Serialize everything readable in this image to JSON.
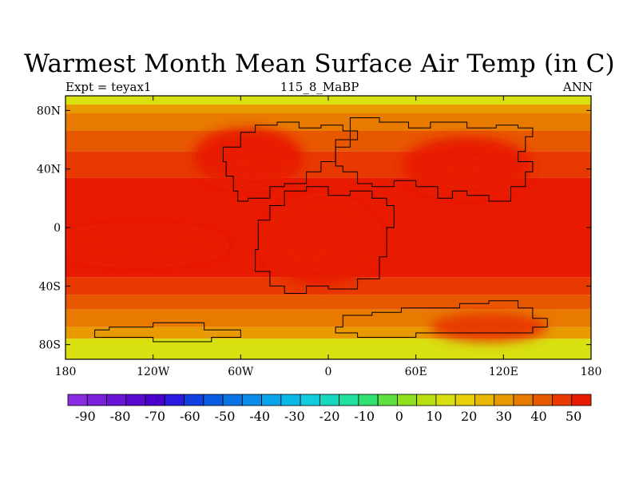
{
  "title": "Warmest Month Mean Surface Air Temp (in C)",
  "subtitle_left": "Expt = teyax1",
  "subtitle_center": "115_8_MaBP",
  "subtitle_right": "ANN",
  "map": {
    "type": "filled-contour-map",
    "variable": "Warmest Month Mean Surface Air Temp",
    "units": "C",
    "lon_range": [
      -180,
      180
    ],
    "lat_range": [
      -90,
      90
    ],
    "x_tick_labels": [
      {
        "lon": -180,
        "label": "180"
      },
      {
        "lon": -120,
        "label": "120W"
      },
      {
        "lon": -60,
        "label": "60W"
      },
      {
        "lon": 0,
        "label": "0"
      },
      {
        "lon": 60,
        "label": "60E"
      },
      {
        "lon": 120,
        "label": "120E"
      },
      {
        "lon": 180,
        "label": "180"
      }
    ],
    "y_tick_labels": [
      {
        "lat": 80,
        "label": "80N"
      },
      {
        "lat": 40,
        "label": "40N"
      },
      {
        "lat": 0,
        "label": "0"
      },
      {
        "lat": -40,
        "label": "40S"
      },
      {
        "lat": -80,
        "label": "80S"
      }
    ],
    "temperature_bands": [
      {
        "lat_from": 90,
        "lat_to": 84,
        "temp": 0
      },
      {
        "lat_from": 84,
        "lat_to": 78,
        "temp": 15
      },
      {
        "lat_from": 78,
        "lat_to": 66,
        "temp": 20
      },
      {
        "lat_from": 66,
        "lat_to": 52,
        "temp": 25
      },
      {
        "lat_from": 52,
        "lat_to": 34,
        "temp": 30
      },
      {
        "lat_from": 34,
        "lat_to": -34,
        "temp": 35
      },
      {
        "lat_from": -34,
        "lat_to": -46,
        "temp": 30
      },
      {
        "lat_from": -46,
        "lat_to": -56,
        "temp": 25
      },
      {
        "lat_from": -56,
        "lat_to": -68,
        "temp": 20
      },
      {
        "lat_from": -68,
        "lat_to": -76,
        "temp": 15
      },
      {
        "lat_from": -76,
        "lat_to": -90,
        "temp": 0
      }
    ],
    "hot_spots": [
      {
        "name": "laurasia-west",
        "lon": -55,
        "lat": 48,
        "rlon": 38,
        "rlat": 20,
        "temp": 40
      },
      {
        "name": "laurasia-west-core",
        "lon": -45,
        "lat": 45,
        "rlon": 20,
        "rlat": 10,
        "temp": 45
      },
      {
        "name": "asia",
        "lon": 95,
        "lat": 42,
        "rlon": 45,
        "rlat": 20,
        "temp": 40
      },
      {
        "name": "asia-core",
        "lon": 93,
        "lat": 38,
        "rlon": 18,
        "rlat": 8,
        "temp": 45
      },
      {
        "name": "west-gondwana",
        "lon": -5,
        "lat": -10,
        "rlon": 40,
        "rlat": 30,
        "temp": 40
      },
      {
        "name": "west-gondwana-core",
        "lon": -15,
        "lat": -18,
        "rlon": 15,
        "rlat": 10,
        "temp": 45
      },
      {
        "name": "equatorial-ocean",
        "lon": -130,
        "lat": -12,
        "rlon": 60,
        "rlat": 12,
        "temp": 40
      },
      {
        "name": "east-gondwana",
        "lon": 110,
        "lat": -68,
        "rlon": 40,
        "rlat": 10,
        "temp": 30
      }
    ],
    "coastlines": [
      [
        [
          -60,
          65
        ],
        [
          -50,
          70
        ],
        [
          -35,
          72
        ],
        [
          -20,
          68
        ],
        [
          -5,
          70
        ],
        [
          10,
          66
        ],
        [
          20,
          60
        ],
        [
          5,
          55
        ],
        [
          5,
          45
        ],
        [
          -5,
          38
        ],
        [
          -15,
          30
        ],
        [
          -30,
          28
        ],
        [
          -40,
          20
        ],
        [
          -55,
          18
        ],
        [
          -62,
          25
        ],
        [
          -65,
          35
        ],
        [
          -70,
          45
        ],
        [
          -72,
          55
        ],
        [
          -60,
          65
        ]
      ],
      [
        [
          15,
          75
        ],
        [
          35,
          72
        ],
        [
          55,
          68
        ],
        [
          70,
          72
        ],
        [
          95,
          68
        ],
        [
          115,
          70
        ],
        [
          130,
          68
        ],
        [
          140,
          62
        ],
        [
          135,
          52
        ],
        [
          130,
          45
        ],
        [
          140,
          38
        ],
        [
          135,
          28
        ],
        [
          125,
          18
        ],
        [
          110,
          22
        ],
        [
          95,
          25
        ],
        [
          85,
          20
        ],
        [
          75,
          28
        ],
        [
          60,
          32
        ],
        [
          45,
          28
        ],
        [
          30,
          30
        ],
        [
          20,
          38
        ],
        [
          10,
          42
        ],
        [
          5,
          55
        ],
        [
          15,
          60
        ],
        [
          15,
          75
        ]
      ],
      [
        [
          -30,
          25
        ],
        [
          -15,
          28
        ],
        [
          0,
          22
        ],
        [
          15,
          25
        ],
        [
          30,
          20
        ],
        [
          40,
          15
        ],
        [
          45,
          0
        ],
        [
          40,
          -20
        ],
        [
          35,
          -35
        ],
        [
          20,
          -42
        ],
        [
          0,
          -40
        ],
        [
          -15,
          -45
        ],
        [
          -30,
          -40
        ],
        [
          -40,
          -30
        ],
        [
          -50,
          -15
        ],
        [
          -48,
          5
        ],
        [
          -40,
          15
        ],
        [
          -30,
          25
        ]
      ],
      [
        [
          10,
          -60
        ],
        [
          30,
          -58
        ],
        [
          50,
          -55
        ],
        [
          70,
          -55
        ],
        [
          90,
          -52
        ],
        [
          110,
          -50
        ],
        [
          130,
          -55
        ],
        [
          140,
          -62
        ],
        [
          150,
          -68
        ],
        [
          140,
          -72
        ],
        [
          100,
          -72
        ],
        [
          60,
          -75
        ],
        [
          20,
          -72
        ],
        [
          5,
          -68
        ],
        [
          10,
          -60
        ]
      ],
      [
        [
          -160,
          -75
        ],
        [
          -120,
          -78
        ],
        [
          -80,
          -75
        ],
        [
          -60,
          -70
        ],
        [
          -85,
          -65
        ],
        [
          -120,
          -68
        ],
        [
          -150,
          -70
        ],
        [
          -160,
          -75
        ]
      ]
    ]
  },
  "colorbar": {
    "colors": [
      "#8a2be2",
      "#7a1fdc",
      "#6a14d6",
      "#5a0ad0",
      "#4a00cc",
      "#2a1adf",
      "#1040e0",
      "#0a5ce0",
      "#0a74e4",
      "#0a8ce8",
      "#0aa4ec",
      "#0ab8e8",
      "#10ccdc",
      "#18d8c0",
      "#20e0a0",
      "#30e070",
      "#60e040",
      "#90e020",
      "#b8e010",
      "#d8e010",
      "#e8d008",
      "#e8b800",
      "#e89a00",
      "#e87a00",
      "#e85800",
      "#e83a00",
      "#e81a00"
    ],
    "labels": [
      "-90",
      "-80",
      "-70",
      "-60",
      "-50",
      "-40",
      "-30",
      "-20",
      "-10",
      "0",
      "10",
      "20",
      "30",
      "40",
      "50"
    ],
    "min": -95,
    "max": 55,
    "step": 5
  }
}
